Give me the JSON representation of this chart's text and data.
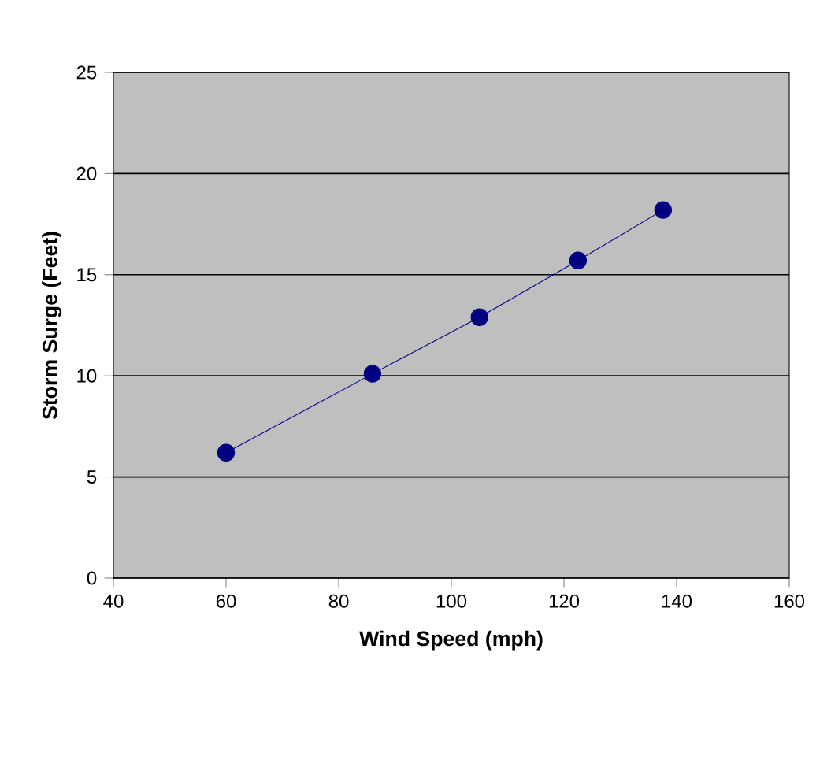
{
  "chart_data": {
    "type": "line",
    "xlabel": "Wind Speed (mph)",
    "ylabel": "Storm Surge (Feet)",
    "x": [
      60,
      86,
      105,
      122.5,
      137.6
    ],
    "series": [
      {
        "color": "#000080",
        "values": [
          6.2,
          10.1,
          12.9,
          15.7,
          18.2
        ]
      }
    ],
    "xlim": [
      40,
      160
    ],
    "ylim": [
      0,
      25
    ],
    "xticks": [
      40,
      60,
      80,
      100,
      120,
      140,
      160
    ],
    "yticks": [
      0,
      5,
      10,
      15,
      20,
      25
    ],
    "grid": "y",
    "marker": "circle",
    "line_style": "solid"
  }
}
